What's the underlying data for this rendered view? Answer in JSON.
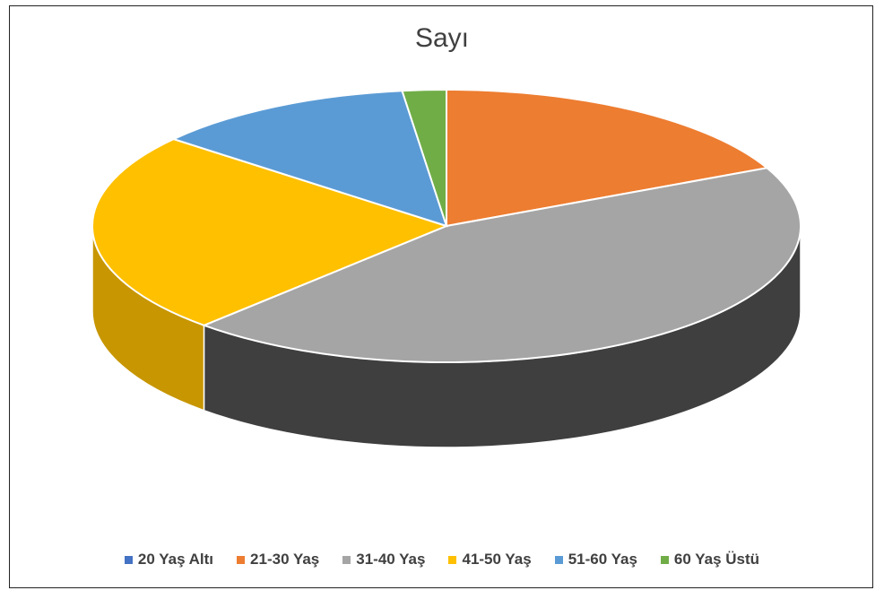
{
  "chart_data": {
    "type": "pie",
    "title": "Sayı",
    "categories": [
      "20 Yaş Altı",
      "21-30 Yaş",
      "31-40 Yaş",
      "41-50 Yaş",
      "51-60 Yaş",
      "60 Yaş Üstü"
    ],
    "values": [
      0,
      18,
      44,
      24,
      12,
      2
    ],
    "colors": [
      "#4472C4",
      "#ED7D31",
      "#A5A5A5",
      "#FFC000",
      "#5B9BD5",
      "#70AD47"
    ],
    "legend_position": "bottom",
    "style": "3d"
  }
}
